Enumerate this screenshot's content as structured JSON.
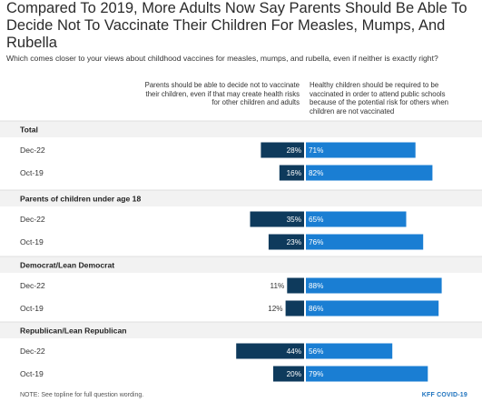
{
  "chart_data": {
    "type": "bar",
    "title": "Compared To 2019, More Adults Now Say Parents Should Be Able To Decide Not To Vaccinate Their Children For Measles, Mumps, And Rubella",
    "subtitle": "Which comes closer to your views about childhood vaccines for measles, mumps, and rubella, even if neither is exactly right?",
    "orientation": "horizontal-diverging",
    "value_suffix": "%",
    "series": [
      {
        "name": "Parents should be able to decide not to vaccinate their children, even if that may create health risks for other children and adults",
        "color": "#0e3a5c"
      },
      {
        "name": "Healthy children should be required to be vaccinated in order to attend public schools because of the potential risk for others when children are not vaccinated",
        "color": "#1a7ed3"
      }
    ],
    "groups": [
      {
        "label": "Total",
        "rows": [
          {
            "label": "Dec-22",
            "values": [
              28,
              71
            ]
          },
          {
            "label": "Oct-19",
            "values": [
              16,
              82
            ]
          }
        ]
      },
      {
        "label": "Parents of children under age 18",
        "rows": [
          {
            "label": "Dec-22",
            "values": [
              35,
              65
            ]
          },
          {
            "label": "Oct-19",
            "values": [
              23,
              76
            ]
          }
        ]
      },
      {
        "label": "Democrat/Lean Democrat",
        "rows": [
          {
            "label": "Dec-22",
            "values": [
              11,
              88
            ]
          },
          {
            "label": "Oct-19",
            "values": [
              12,
              86
            ]
          }
        ]
      },
      {
        "label": "Republican/Lean Republican",
        "rows": [
          {
            "label": "Dec-22",
            "values": [
              44,
              56
            ]
          },
          {
            "label": "Oct-19",
            "values": [
              20,
              79
            ]
          }
        ]
      }
    ],
    "xlim": [
      0,
      100
    ]
  },
  "footer": {
    "note": "NOTE: See topline for full question wording.",
    "source": "KFF COVID-19"
  },
  "colors": {
    "group_band": "#f2f2f2",
    "divider": "#d8d8d8"
  }
}
